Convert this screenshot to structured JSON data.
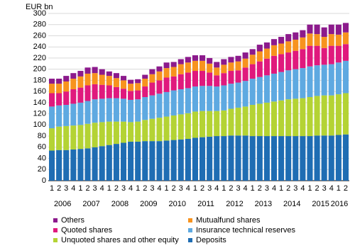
{
  "chart_data": {
    "type": "stacked-bar",
    "y_axis_label": "EUR bn",
    "categories": [
      "1",
      "2",
      "3",
      "4",
      "1",
      "2",
      "3",
      "4",
      "1",
      "2",
      "3",
      "4",
      "1",
      "2",
      "3",
      "4",
      "1",
      "2",
      "3",
      "4",
      "1",
      "2",
      "3",
      "4",
      "1",
      "2",
      "3",
      "4",
      "1",
      "2",
      "3",
      "4",
      "1",
      "2",
      "3",
      "4",
      "1",
      "2",
      "3",
      "4",
      "1",
      "2"
    ],
    "year_labels": [
      "2006",
      "2007",
      "2008",
      "2009",
      "2010",
      "2011",
      "2012",
      "2013",
      "2014",
      "2015",
      "2016"
    ],
    "ylim": [
      0,
      300
    ],
    "yticks": [
      0,
      20,
      40,
      60,
      80,
      100,
      120,
      140,
      160,
      180,
      200,
      220,
      240,
      260,
      280,
      300
    ],
    "grid": true,
    "series": [
      {
        "name": "Deposits",
        "color": "#1f6db3",
        "values": [
          54,
          55,
          55,
          56,
          57,
          58,
          60,
          62,
          64,
          66,
          68,
          70,
          70,
          71,
          71,
          71,
          72,
          73,
          74,
          75,
          77,
          78,
          79,
          80,
          80,
          81,
          81,
          81,
          80,
          80,
          80,
          80,
          80,
          80,
          80,
          80,
          80,
          81,
          81,
          81,
          82,
          83
        ]
      },
      {
        "name": "Unquoted shares and other equity",
        "color": "#b4d334",
        "values": [
          40,
          42,
          43,
          43,
          43,
          44,
          44,
          43,
          42,
          40,
          38,
          35,
          36,
          38,
          40,
          42,
          43,
          44,
          45,
          46,
          47,
          47,
          46,
          45,
          46,
          48,
          50,
          52,
          56,
          58,
          60,
          62,
          64,
          66,
          67,
          68,
          70,
          71,
          72,
          72,
          73,
          74
        ]
      },
      {
        "name": "Insurance technical reserves",
        "color": "#5ea9e1",
        "values": [
          39,
          38,
          38,
          39,
          40,
          41,
          42,
          42,
          42,
          42,
          41,
          40,
          40,
          41,
          42,
          43,
          44,
          45,
          45,
          45,
          45,
          45,
          45,
          44,
          45,
          45,
          45,
          46,
          47,
          48,
          49,
          50,
          51,
          52,
          53,
          54,
          55,
          55,
          55,
          56,
          57,
          58
        ]
      },
      {
        "name": "Quoted shares",
        "color": "#e0197d",
        "values": [
          24,
          22,
          24,
          26,
          27,
          28,
          27,
          25,
          23,
          20,
          18,
          16,
          16,
          19,
          23,
          24,
          26,
          25,
          27,
          28,
          28,
          27,
          24,
          20,
          22,
          23,
          22,
          24,
          26,
          28,
          30,
          32,
          32,
          32,
          33,
          34,
          37,
          35,
          30,
          33,
          30,
          30
        ]
      },
      {
        "name": "Mutualfund shares",
        "color": "#f7931e",
        "values": [
          17,
          17,
          18,
          19,
          20,
          21,
          20,
          18,
          17,
          16,
          15,
          13,
          13,
          14,
          15,
          16,
          17,
          17,
          18,
          18,
          18,
          18,
          16,
          14,
          15,
          15,
          16,
          16,
          17,
          18,
          18,
          19,
          19,
          20,
          20,
          21,
          22,
          21,
          20,
          21,
          20,
          21
        ]
      },
      {
        "name": "Others",
        "color": "#8c1a8c",
        "values": [
          9,
          9,
          10,
          10,
          10,
          11,
          11,
          10,
          8,
          9,
          8,
          7,
          7,
          7,
          9,
          9,
          10,
          9,
          9,
          10,
          10,
          10,
          10,
          10,
          10,
          10,
          10,
          11,
          10,
          12,
          11,
          11,
          12,
          13,
          13,
          13,
          16,
          17,
          17,
          17,
          18,
          17
        ]
      }
    ]
  }
}
